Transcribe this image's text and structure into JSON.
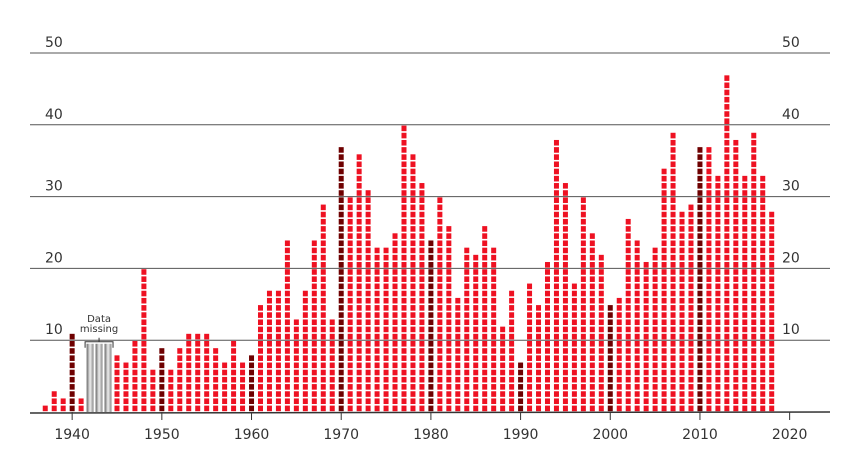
{
  "chart_data": {
    "type": "square-stack",
    "x": [
      1937,
      1938,
      1939,
      1940,
      1941,
      1942,
      1943,
      1944,
      1945,
      1946,
      1947,
      1948,
      1949,
      1950,
      1951,
      1952,
      1953,
      1954,
      1955,
      1956,
      1957,
      1958,
      1959,
      1960,
      1961,
      1962,
      1963,
      1964,
      1965,
      1966,
      1967,
      1968,
      1969,
      1970,
      1971,
      1972,
      1973,
      1974,
      1975,
      1976,
      1977,
      1978,
      1979,
      1980,
      1981,
      1982,
      1983,
      1984,
      1985,
      1986,
      1987,
      1988,
      1989,
      1990,
      1991,
      1992,
      1993,
      1994,
      1995,
      1996,
      1997,
      1998,
      1999,
      2000,
      2001,
      2002,
      2003,
      2004,
      2005,
      2006,
      2007,
      2008,
      2009,
      2010,
      2011,
      2012,
      2013,
      2014,
      2015,
      2016,
      2017,
      2018
    ],
    "values": [
      1,
      3,
      2,
      11,
      2,
      null,
      null,
      null,
      8,
      7,
      10,
      20,
      6,
      9,
      6,
      9,
      11,
      11,
      11,
      9,
      7,
      10,
      7,
      8,
      15,
      17,
      17,
      24,
      13,
      17,
      24,
      29,
      13,
      37,
      30,
      36,
      31,
      23,
      23,
      25,
      40,
      36,
      32,
      24,
      30,
      26,
      16,
      23,
      22,
      26,
      23,
      12,
      17,
      7,
      18,
      15,
      21,
      38,
      32,
      18,
      30,
      25,
      22,
      15,
      16,
      27,
      24,
      21,
      23,
      34,
      39,
      28,
      29,
      37,
      37,
      33,
      47,
      38,
      33,
      39,
      33,
      28
    ],
    "color": "#ee1122",
    "highlight_color": "#6e0000",
    "xlim": [
      1935.3,
      2024.5
    ],
    "xticks": [
      1940,
      1950,
      1960,
      1970,
      1980,
      1990,
      2000,
      2010,
      2020
    ],
    "ylim": [
      0,
      50
    ],
    "yticks": [
      10,
      20,
      30,
      40,
      50
    ],
    "grid": true,
    "annotation": [
      "Data",
      "missing"
    ]
  }
}
